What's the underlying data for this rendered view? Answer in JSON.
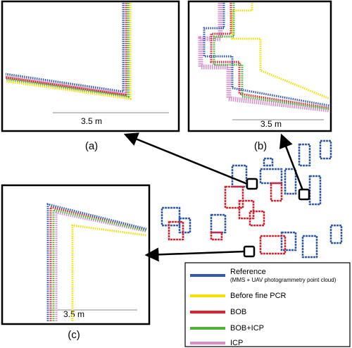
{
  "panels": [
    {
      "label": "(a)",
      "scale": "3.5 m"
    },
    {
      "label": "(b)",
      "scale": "3.5 m"
    },
    {
      "label": "(c)",
      "scale": "3.5 m"
    }
  ],
  "legend": [
    {
      "name": "Reference",
      "note": "(MMS + UAV photogrammetry point cloud)",
      "color": "#2f59b3"
    },
    {
      "name": "Before fine PCR",
      "color": "#f2e200"
    },
    {
      "name": "BOB",
      "color": "#e3202b"
    },
    {
      "name": "BOB+ICP",
      "color": "#4fb13b"
    },
    {
      "name": "ICP",
      "color": "#d98bd1"
    }
  ]
}
